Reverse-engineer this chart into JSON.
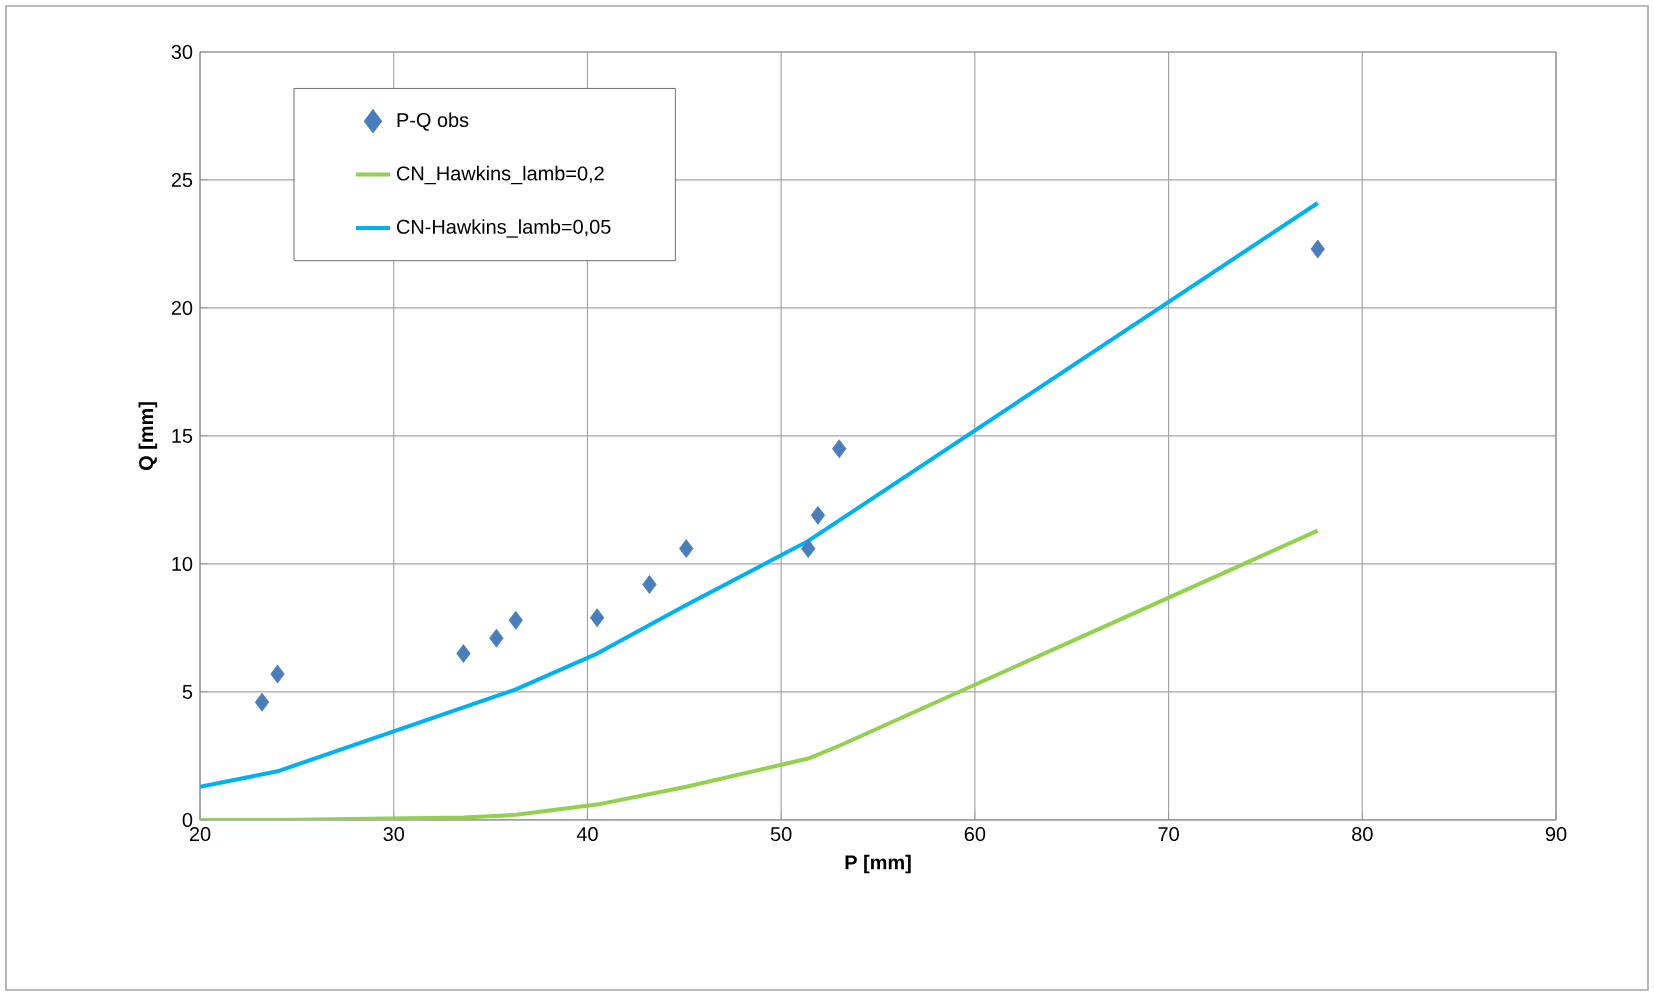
{
  "chart_data": {
    "type": "scatter",
    "xlabel": "P [mm]",
    "ylabel": "Q [mm]",
    "xlim": [
      20,
      90
    ],
    "ylim": [
      0,
      30
    ],
    "xticks": [
      20,
      30,
      40,
      50,
      60,
      70,
      80,
      90
    ],
    "yticks": [
      0,
      5,
      10,
      15,
      20,
      25,
      30
    ],
    "grid": true,
    "legend": "top left",
    "series": [
      {
        "name": "P-Q obs",
        "marker": "diamond",
        "color": "#4a7ebb",
        "x": [
          23.2,
          24.0,
          33.6,
          35.3,
          36.3,
          40.5,
          43.2,
          45.1,
          51.4,
          51.9,
          53.0,
          77.7
        ],
        "values": [
          4.6,
          5.7,
          6.5,
          7.1,
          7.8,
          7.9,
          9.2,
          10.6,
          10.6,
          11.9,
          14.5,
          22.3
        ]
      },
      {
        "name": "CN_Hawkins_lamb=0,2",
        "type": "line",
        "color": "#92d050",
        "x": [
          20,
          24.0,
          33.6,
          36.3,
          40.5,
          45.1,
          51.4,
          53.0,
          77.7
        ],
        "values": [
          0,
          0,
          0.1,
          0.2,
          0.6,
          1.3,
          2.4,
          2.9,
          11.3
        ]
      },
      {
        "name": "CN-Hawkins_lamb=0,05",
        "type": "line",
        "color": "#00b0f0",
        "x": [
          20,
          24.0,
          33.6,
          36.3,
          40.5,
          45.1,
          51.4,
          53.0,
          77.7
        ],
        "values": [
          1.3,
          1.9,
          4.4,
          5.1,
          6.5,
          8.4,
          10.9,
          11.7,
          24.1
        ]
      }
    ]
  }
}
